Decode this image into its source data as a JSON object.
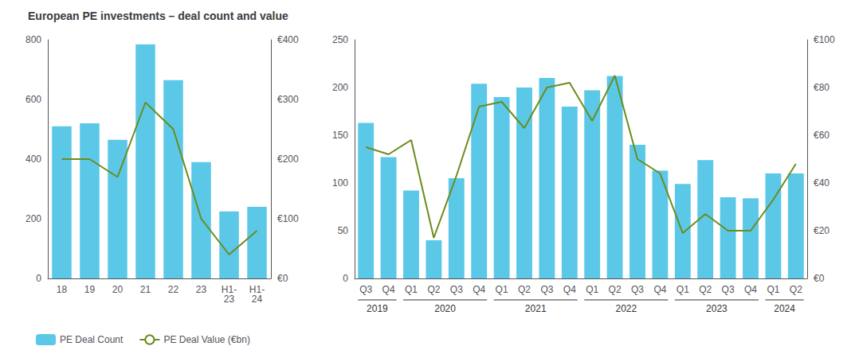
{
  "chart_data": [
    {
      "type": "bar",
      "title": "European PE investments – deal count and value",
      "categories": [
        "18",
        "19",
        "20",
        "21",
        "22",
        "23",
        "H1-\n23",
        "H1-\n24"
      ],
      "series": [
        {
          "name": "PE Deal Count",
          "type": "bar",
          "color": "#5BC8E8",
          "values": [
            510,
            520,
            465,
            785,
            665,
            390,
            225,
            240
          ]
        },
        {
          "name": "PE Deal Value (€bn)",
          "type": "line",
          "color": "#6B8C1E",
          "axis": "y2",
          "values": [
            200,
            200,
            170,
            295,
            250,
            100,
            40,
            80
          ]
        }
      ],
      "ylim": [
        0,
        800
      ],
      "yticks": [
        0,
        200,
        400,
        600,
        800
      ],
      "y2lim": [
        0,
        400
      ],
      "y2ticks": [
        {
          "value": 0,
          "label": "€0"
        },
        {
          "value": 100,
          "label": "€100"
        },
        {
          "value": 200,
          "label": "€200"
        },
        {
          "value": 300,
          "label": "€300"
        },
        {
          "value": 400,
          "label": "€400"
        }
      ],
      "grid": false,
      "legend": "lower left"
    },
    {
      "type": "bar",
      "categories": [
        "Q3",
        "Q4",
        "Q1",
        "Q2",
        "Q3",
        "Q4",
        "Q1",
        "Q2",
        "Q3",
        "Q4",
        "Q1",
        "Q2",
        "Q3",
        "Q4",
        "Q1",
        "Q2",
        "Q3",
        "Q4",
        "Q1",
        "Q2"
      ],
      "series": [
        {
          "name": "PE Deal Count",
          "type": "bar",
          "color": "#5BC8E8",
          "values": [
            163,
            127,
            92,
            40,
            105,
            204,
            190,
            200,
            210,
            180,
            197,
            212,
            140,
            113,
            99,
            124,
            85,
            84,
            110,
            110
          ]
        },
        {
          "name": "PE Deal Value (€bn)",
          "type": "line",
          "color": "#6B8C1E",
          "axis": "y2",
          "values": [
            55,
            52,
            58,
            17,
            43,
            72,
            74,
            63,
            80,
            82,
            66,
            85,
            50,
            44,
            19,
            27,
            20,
            20,
            33,
            48
          ]
        }
      ],
      "ylim": [
        0,
        250
      ],
      "yticks": [
        0,
        50,
        100,
        150,
        200,
        250
      ],
      "y2lim": [
        0,
        100
      ],
      "y2ticks": [
        {
          "value": 0,
          "label": "€0"
        },
        {
          "value": 20,
          "label": "€20"
        },
        {
          "value": 40,
          "label": "€40"
        },
        {
          "value": 60,
          "label": "€60"
        },
        {
          "value": 80,
          "label": "€80"
        },
        {
          "value": 100,
          "label": "€100"
        }
      ],
      "grid": false,
      "annotations": [
        {
          "text": "2019",
          "span": [
            0,
            1
          ]
        },
        {
          "text": "2020",
          "span": [
            2,
            5
          ]
        },
        {
          "text": "2021",
          "span": [
            6,
            9
          ]
        },
        {
          "text": "2022",
          "span": [
            10,
            13
          ]
        },
        {
          "text": "2023",
          "span": [
            14,
            17
          ]
        },
        {
          "text": "2024",
          "span": [
            18,
            19
          ]
        }
      ]
    }
  ]
}
